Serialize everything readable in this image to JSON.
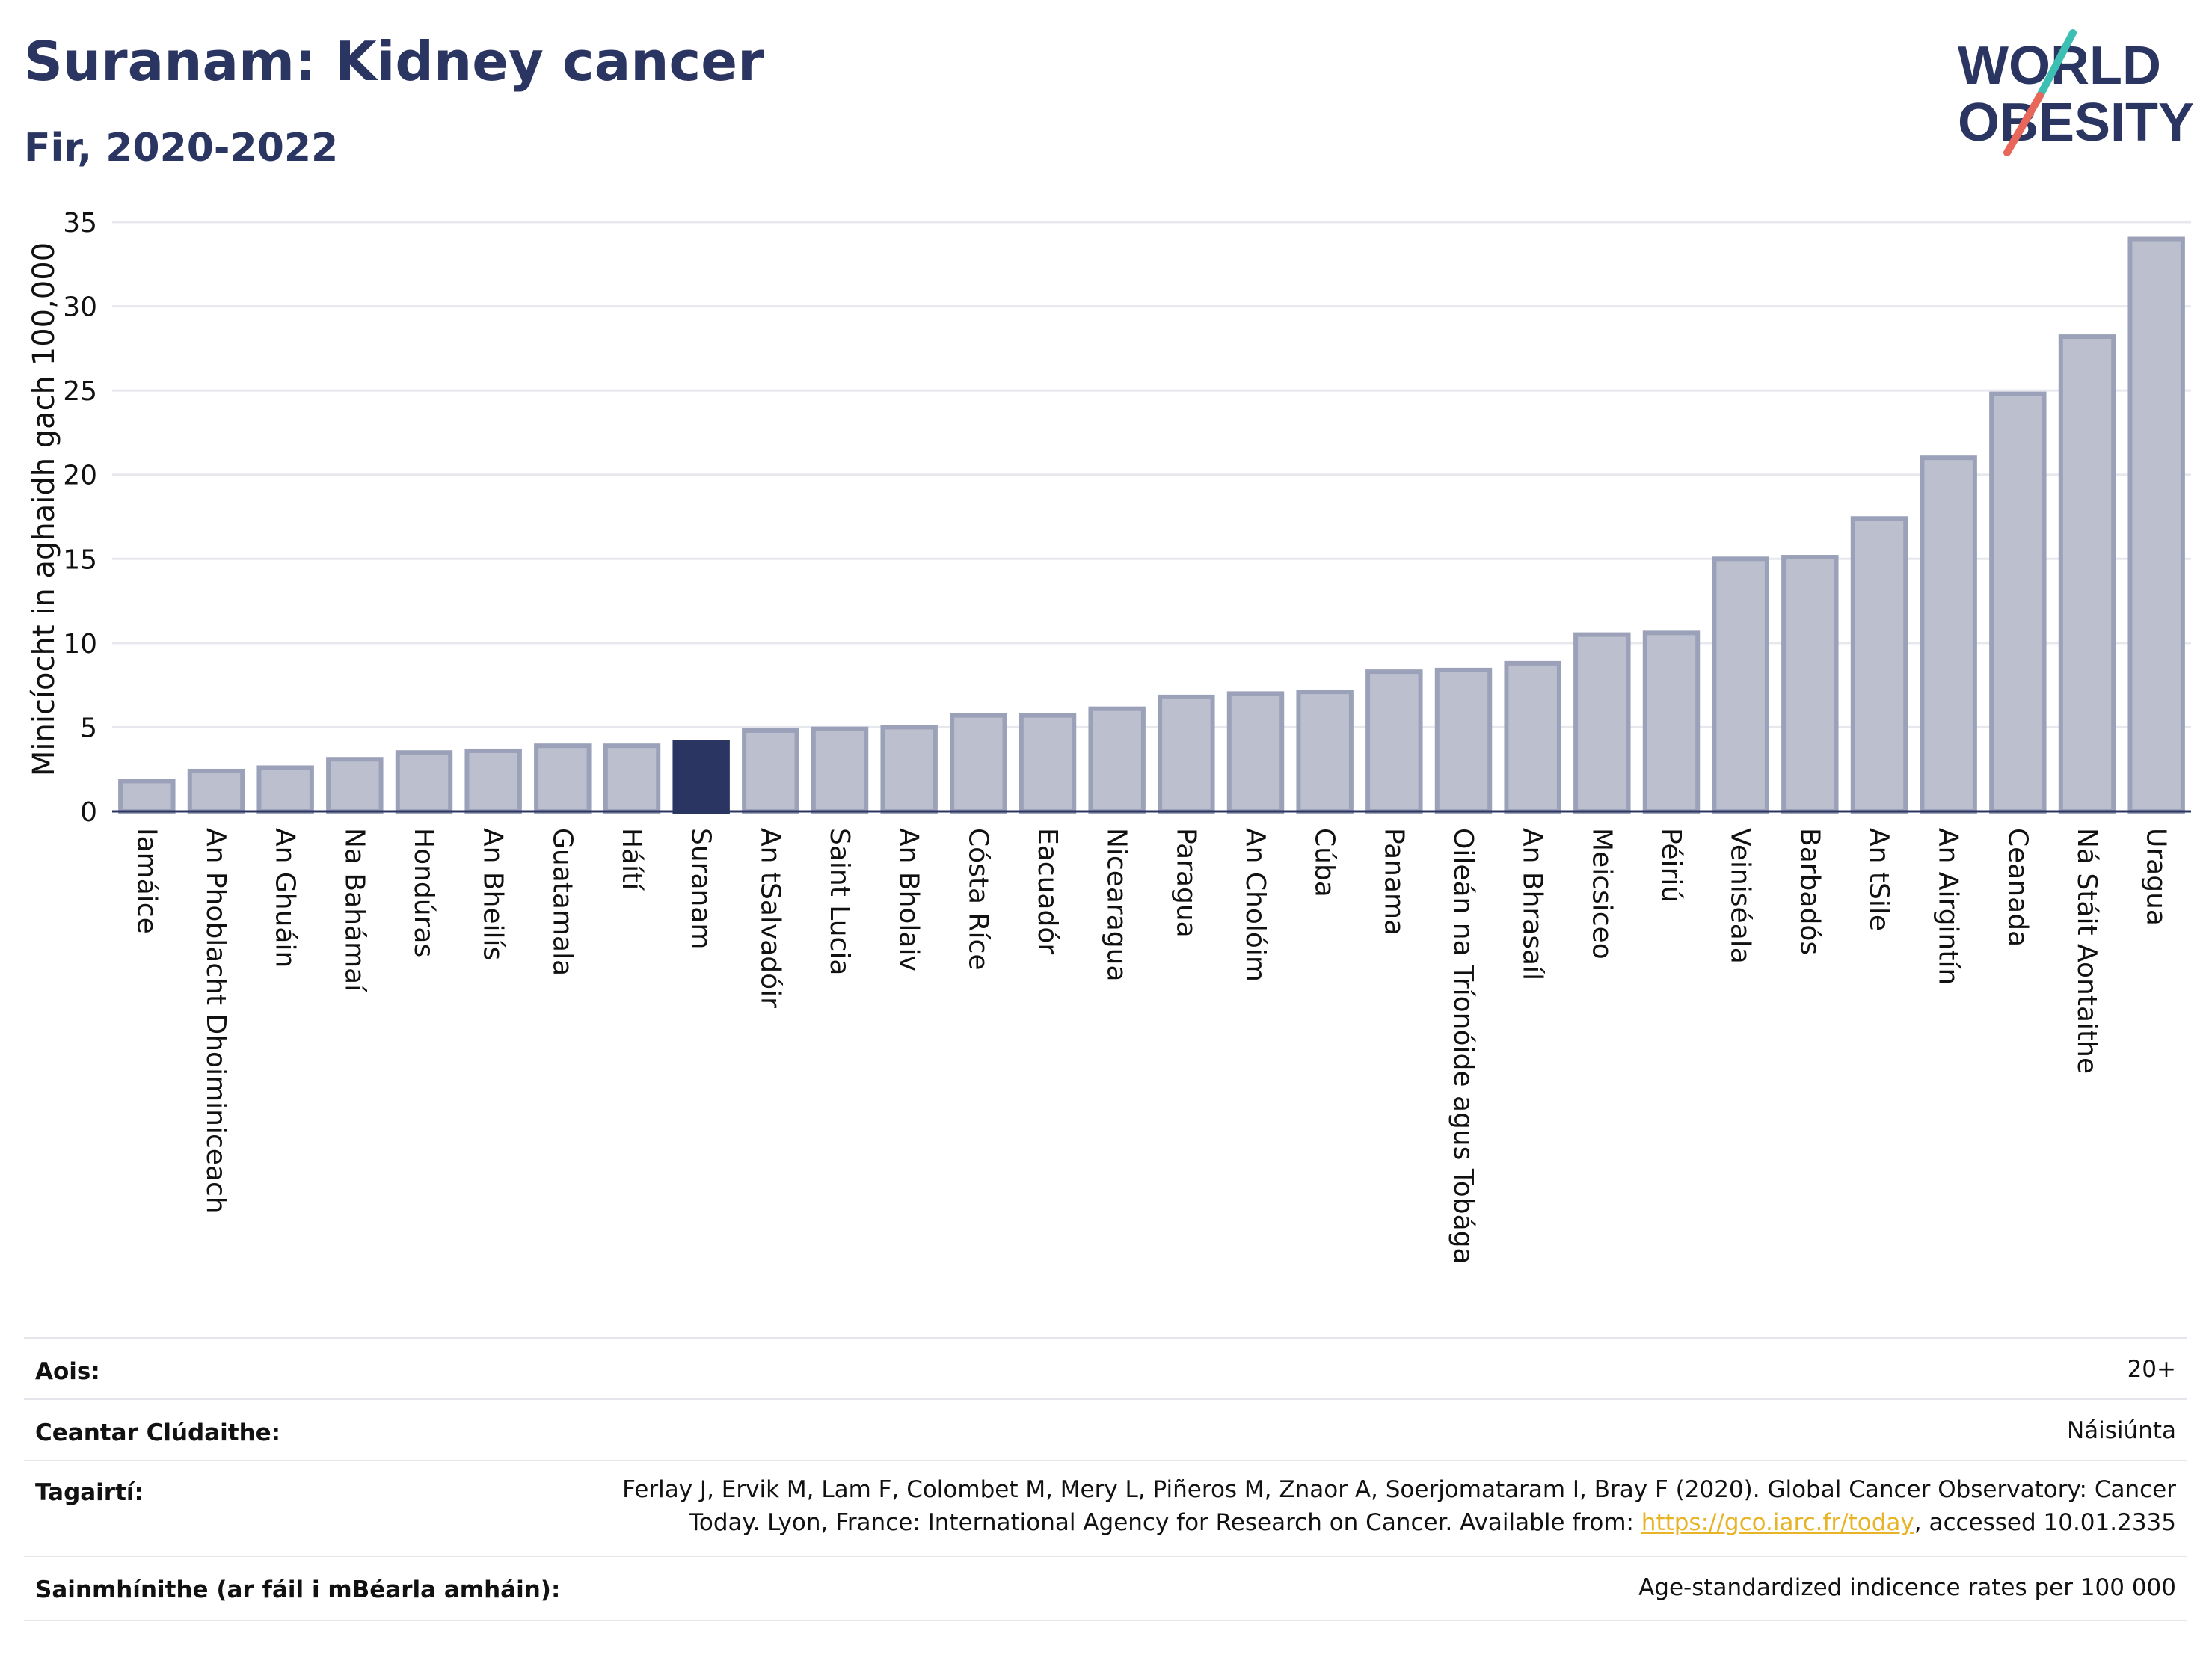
{
  "header": {
    "title": "Suranam: Kidney cancer",
    "subtitle": "Fir, 2020-2022"
  },
  "logo": {
    "line1": "WORLD",
    "line2": "OBESITY",
    "slash_colors": [
      "#3dbfb3",
      "#e8675a"
    ]
  },
  "colors": {
    "bar": "#bcc0ce",
    "bar_border": "#9ba1b8",
    "highlight": "#2b3561",
    "grid": "#e6e8ee",
    "axis": "#2b3561"
  },
  "chart_data": {
    "type": "bar",
    "ylabel": "Minicíocht in aghaidh gach 100,000",
    "ylim": [
      0,
      35
    ],
    "yticks": [
      0,
      5,
      10,
      15,
      20,
      25,
      30,
      35
    ],
    "highlight": "Suranam",
    "categories": [
      "Iamáice",
      "An Phoblacht Dhoiminiceach",
      "An Ghuáin",
      "Na Bahámaí",
      "Hondúras",
      "An Bheilís",
      "Guatamala",
      "Háítí",
      "Suranam",
      "An tSalvadóir",
      "Saint Lucia",
      "An Bholaiv",
      "Cósta Ríce",
      "Eacuadór",
      "Nicearagua",
      "Paragua",
      "An Cholóim",
      "Cúba",
      "Panama",
      "Oileán na Tríonóide agus Tobága",
      "An Bhrasaíl",
      "Meicsiceo",
      "Péiriú",
      "Veiniséala",
      "Barbadós",
      "An tSile",
      "An Airgintín",
      "Ceanada",
      "Ná Stáit Aontaithe",
      "Uragua"
    ],
    "values": [
      1.8,
      2.4,
      2.6,
      3.1,
      3.5,
      3.6,
      3.9,
      3.9,
      4.1,
      4.8,
      4.9,
      5.0,
      5.7,
      5.7,
      6.1,
      6.8,
      7.0,
      7.1,
      8.3,
      8.4,
      8.8,
      10.5,
      10.6,
      15.0,
      15.1,
      17.4,
      21.0,
      24.8,
      28.2,
      34.0
    ]
  },
  "info": {
    "age_label": "Aois:",
    "age_value": "20+",
    "area_label": "Ceantar Clúdaithe:",
    "area_value": "Náisiúnta",
    "ref_label": "Tagairtí:",
    "ref_line1": "Ferlay J, Ervik M, Lam F, Colombet M, Mery L, Piñeros M, Znaor A, Soerjomataram I, Bray F (2020). Global Cancer Observatory: Cancer",
    "ref_line2_pre": "Today. Lyon, France: International Agency for Research on Cancer. Available from: ",
    "ref_link": "https://gco.iarc.fr/today",
    "ref_line2_post": ", accessed 10.01.2335",
    "def_label": "Sainmhínithe (ar fáil i mBéarla amháin):",
    "def_value": "Age-standardized indicence rates per 100 000"
  }
}
